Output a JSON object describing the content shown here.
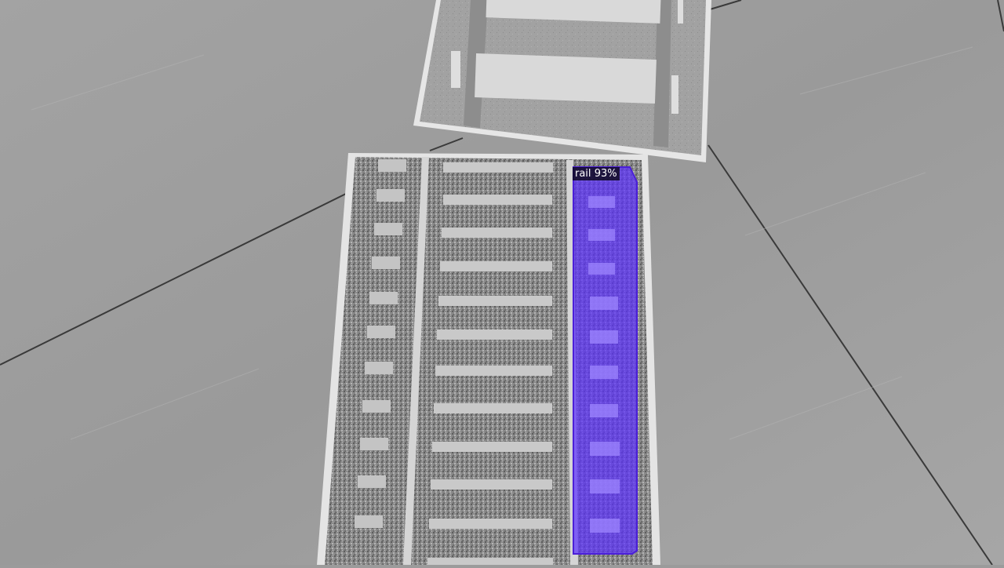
{
  "detection": {
    "class_label": "rail",
    "score": "93%",
    "mask_color": "#5a2dff",
    "outline_color": "#4b1fd8"
  }
}
